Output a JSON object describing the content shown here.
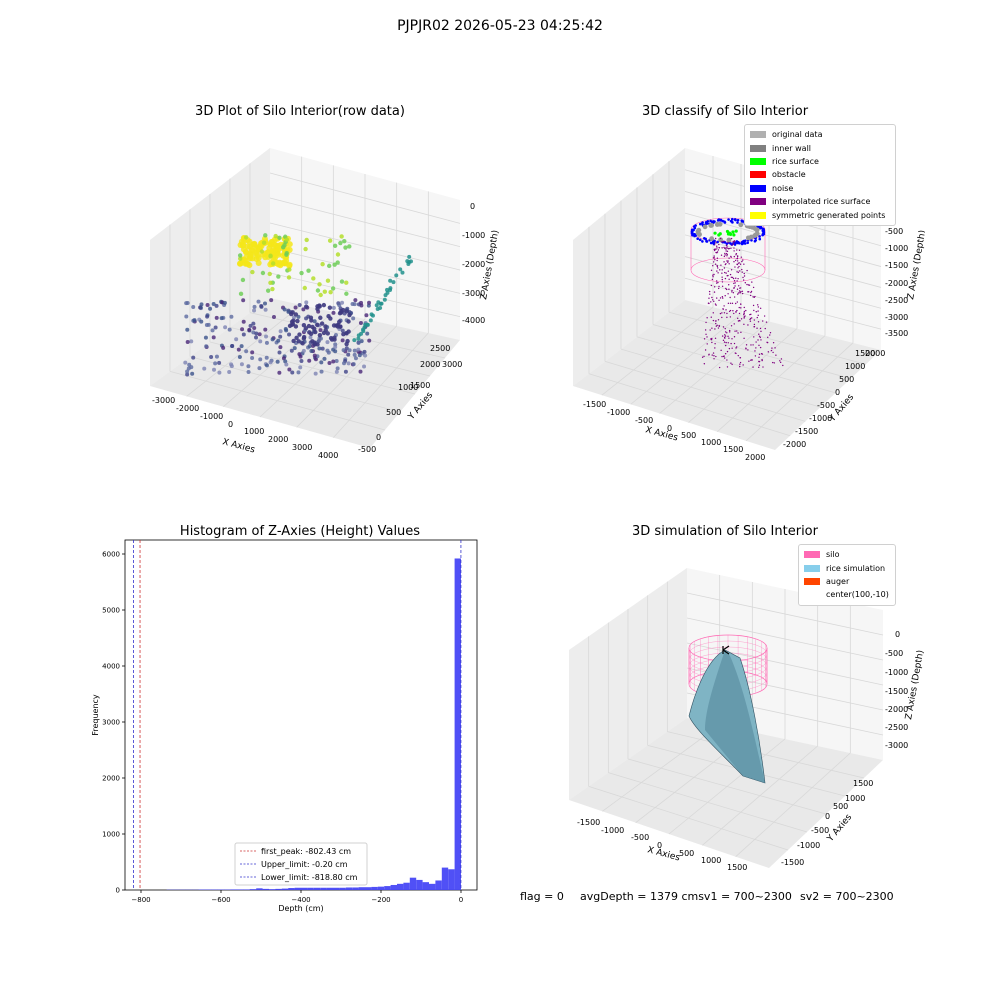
{
  "suptitle": "PJPJR02 2026-05-23 04:25:42",
  "panels": {
    "raw": {
      "title": "3D Plot of Silo Interior(row data)",
      "xlabel": "X Axies",
      "ylabel": "Y Axies",
      "zlabel": "Z Axies (Depth)",
      "xticks": [
        "-3000",
        "-2000",
        "-1000",
        "0",
        "1000",
        "2000",
        "3000",
        "4000"
      ],
      "yticks": [
        "-500",
        "0",
        "500",
        "1000",
        "1500",
        "2000",
        "2500",
        "3000"
      ],
      "zticks": [
        "0",
        "-1000",
        "-2000",
        "-3000",
        "-4000"
      ]
    },
    "classify": {
      "title": "3D classify of Silo Interior",
      "xlabel": "X Axies",
      "ylabel": "Y Axies",
      "zlabel": "Z Axies (Depth)",
      "xticks": [
        "-1500",
        "-1000",
        "-500",
        "0",
        "500",
        "1000",
        "1500",
        "2000"
      ],
      "yticks": [
        "-2000",
        "-1500",
        "-1000",
        "-500",
        "0",
        "500",
        "1000",
        "1500",
        "2000"
      ],
      "zticks": [
        "0",
        "-500",
        "-1000",
        "-1500",
        "-2000",
        "-2500",
        "-3000",
        "-3500"
      ],
      "legend": [
        {
          "label": "original data",
          "color": "#b0b0b0"
        },
        {
          "label": "inner wall",
          "color": "#808080"
        },
        {
          "label": "rice surface",
          "color": "#00ff00"
        },
        {
          "label": "obstacle",
          "color": "#ff0000"
        },
        {
          "label": "noise",
          "color": "#0000ff"
        },
        {
          "label": "interpolated rice surface",
          "color": "#800080"
        },
        {
          "label": "symmetric generated points",
          "color": "#ffff00"
        }
      ]
    },
    "simulation": {
      "title": "3D simulation of Silo Interior",
      "xlabel": "X Axies",
      "ylabel": "Y Axies",
      "zlabel": "Z Axies (Depth)",
      "xticks": [
        "-1500",
        "-1000",
        "-500",
        "0",
        "500",
        "1000",
        "1500"
      ],
      "yticks": [
        "-1500",
        "-1000",
        "-500",
        "0",
        "500",
        "1000",
        "1500"
      ],
      "zticks": [
        "0",
        "-500",
        "-1000",
        "-1500",
        "-2000",
        "-2500",
        "-3000"
      ],
      "legend": [
        {
          "label": "silo",
          "color": "#ff69b4"
        },
        {
          "label": "rice simulation",
          "color": "#87ceeb"
        },
        {
          "label": "auger",
          "color": "#ff4500"
        },
        {
          "label": "center(100,-10)",
          "color": ""
        }
      ]
    }
  },
  "footer": {
    "flag": "flag = 0",
    "avg": "avgDepth = 1379 cmsv1 = 700~2300",
    "sv2": "sv2 = 700~2300"
  },
  "chart_data": [
    {
      "type": "scatter",
      "title": "3D Plot of Silo Interior(row data)",
      "xlabel": "X Axies",
      "ylabel": "Y Axies",
      "zlabel": "Z Axies (Depth)",
      "xlim": [
        -3300,
        4500
      ],
      "ylim": [
        -700,
        3300
      ],
      "zlim": [
        -4600,
        0
      ],
      "clusters": [
        {
          "name": "",
          "x_range": [
            -1500,
            -300
          ],
          "y_range": [
            800,
            1400
          ],
          "z_range": [
            -1800,
            -1400
          ],
          "note_color": "yellow"
        },
        {
          "name": "",
          "x_range": [
            -2500,
            2500
          ],
          "y_range": [
            -500,
            2500
          ],
          "z_range": [
            -4500,
            -3500
          ],
          "note_color": "purple"
        },
        {
          "name": "",
          "x_range": [
            2500,
            4000
          ],
          "y_range": [
            -500,
            1500
          ],
          "z_range": [
            -3600,
            -2000
          ],
          "note_color": "teal"
        }
      ]
    },
    {
      "type": "scatter",
      "title": "3D classify of Silo Interior",
      "xlabel": "X Axies",
      "ylabel": "Y Axies",
      "zlabel": "Z Axies (Depth)",
      "xlim": [
        -1800,
        2100
      ],
      "ylim": [
        -2100,
        2100
      ],
      "zlim": [
        -3700,
        0
      ],
      "series": [
        {
          "name": "original data"
        },
        {
          "name": "inner wall"
        },
        {
          "name": "rice surface"
        },
        {
          "name": "obstacle"
        },
        {
          "name": "noise"
        },
        {
          "name": "interpolated rice surface"
        },
        {
          "name": "symmetric generated points"
        }
      ]
    },
    {
      "type": "bar",
      "title": "Histogram of Z-Axies (Height) Values",
      "xlabel": "Depth (cm)",
      "ylabel": "Frequency",
      "xlim": [
        -840,
        40
      ],
      "ylim": [
        0,
        6250
      ],
      "xticks": [
        -800,
        -600,
        -400,
        -200,
        0
      ],
      "yticks": [
        0,
        1000,
        2000,
        3000,
        4000,
        5000,
        6000
      ],
      "bin_width": 16,
      "bins": [
        {
          "x": -736,
          "y": 5
        },
        {
          "x": -720,
          "y": 5
        },
        {
          "x": -704,
          "y": 5
        },
        {
          "x": -688,
          "y": 5
        },
        {
          "x": -672,
          "y": 5
        },
        {
          "x": -656,
          "y": 8
        },
        {
          "x": -640,
          "y": 8
        },
        {
          "x": -624,
          "y": 8
        },
        {
          "x": -608,
          "y": 8
        },
        {
          "x": -592,
          "y": 8
        },
        {
          "x": -576,
          "y": 10
        },
        {
          "x": -560,
          "y": 10
        },
        {
          "x": -544,
          "y": 10
        },
        {
          "x": -528,
          "y": 15
        },
        {
          "x": -512,
          "y": 30
        },
        {
          "x": -496,
          "y": 20
        },
        {
          "x": -480,
          "y": 15
        },
        {
          "x": -464,
          "y": 20
        },
        {
          "x": -448,
          "y": 25
        },
        {
          "x": -432,
          "y": 35
        },
        {
          "x": -416,
          "y": 40
        },
        {
          "x": -400,
          "y": 40
        },
        {
          "x": -384,
          "y": 40
        },
        {
          "x": -368,
          "y": 40
        },
        {
          "x": -352,
          "y": 40
        },
        {
          "x": -336,
          "y": 40
        },
        {
          "x": -320,
          "y": 40
        },
        {
          "x": -304,
          "y": 40
        },
        {
          "x": -288,
          "y": 45
        },
        {
          "x": -272,
          "y": 45
        },
        {
          "x": -256,
          "y": 50
        },
        {
          "x": -240,
          "y": 50
        },
        {
          "x": -224,
          "y": 55
        },
        {
          "x": -208,
          "y": 60
        },
        {
          "x": -192,
          "y": 70
        },
        {
          "x": -176,
          "y": 90
        },
        {
          "x": -160,
          "y": 110
        },
        {
          "x": -144,
          "y": 130
        },
        {
          "x": -128,
          "y": 220
        },
        {
          "x": -112,
          "y": 180
        },
        {
          "x": -96,
          "y": 140
        },
        {
          "x": -80,
          "y": 110
        },
        {
          "x": -64,
          "y": 170
        },
        {
          "x": -48,
          "y": 400
        },
        {
          "x": -32,
          "y": 370
        },
        {
          "x": -16,
          "y": 5920
        }
      ],
      "lines": [
        {
          "name": "first_peak: -802.43 cm",
          "x": -802.43,
          "color": "#cc3333"
        },
        {
          "name": "Upper_limit: -0.20 cm",
          "x": -0.2,
          "color": "#3333cc"
        },
        {
          "name": "Lower_limit: -818.80 cm",
          "x": -818.8,
          "color": "#3333cc"
        }
      ]
    },
    {
      "type": "surface",
      "title": "3D simulation of Silo Interior",
      "xlabel": "X Axies",
      "ylabel": "Y Axies",
      "zlabel": "Z Axies (Depth)",
      "xlim": [
        -1700,
        1700
      ],
      "ylim": [
        -1700,
        1700
      ],
      "zlim": [
        -3300,
        0
      ],
      "series": [
        {
          "name": "silo"
        },
        {
          "name": "rice simulation"
        },
        {
          "name": "auger"
        },
        {
          "name": "center(100,-10)"
        }
      ]
    }
  ]
}
